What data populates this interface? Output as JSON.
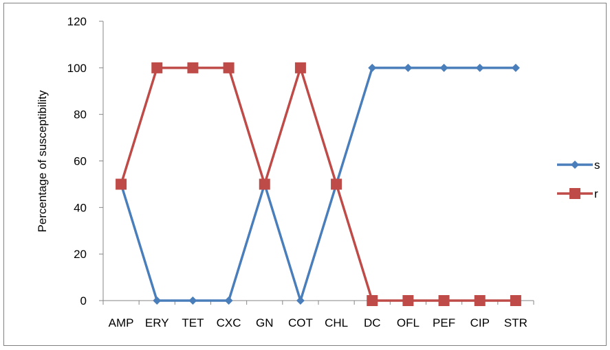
{
  "chart_data": {
    "type": "line",
    "title": "",
    "xlabel": "",
    "ylabel": "Percentage of susceptibility",
    "ylim": [
      0,
      120
    ],
    "yticks": [
      0,
      20,
      40,
      60,
      80,
      100,
      120
    ],
    "grid": false,
    "legend_position": "right",
    "categories": [
      "AMP",
      "ERY",
      "TET",
      "CXC",
      "GN",
      "COT",
      "CHL",
      "DC",
      "OFL",
      "PEF",
      "CIP",
      "STR"
    ],
    "series": [
      {
        "name": "s",
        "color": "#4a7ebb",
        "marker": "diamond",
        "values": [
          50,
          0,
          0,
          0,
          50,
          0,
          50,
          100,
          100,
          100,
          100,
          100
        ]
      },
      {
        "name": "r",
        "color": "#be4b48",
        "marker": "square",
        "values": [
          50,
          100,
          100,
          100,
          50,
          100,
          50,
          0,
          0,
          0,
          0,
          0
        ]
      }
    ]
  }
}
